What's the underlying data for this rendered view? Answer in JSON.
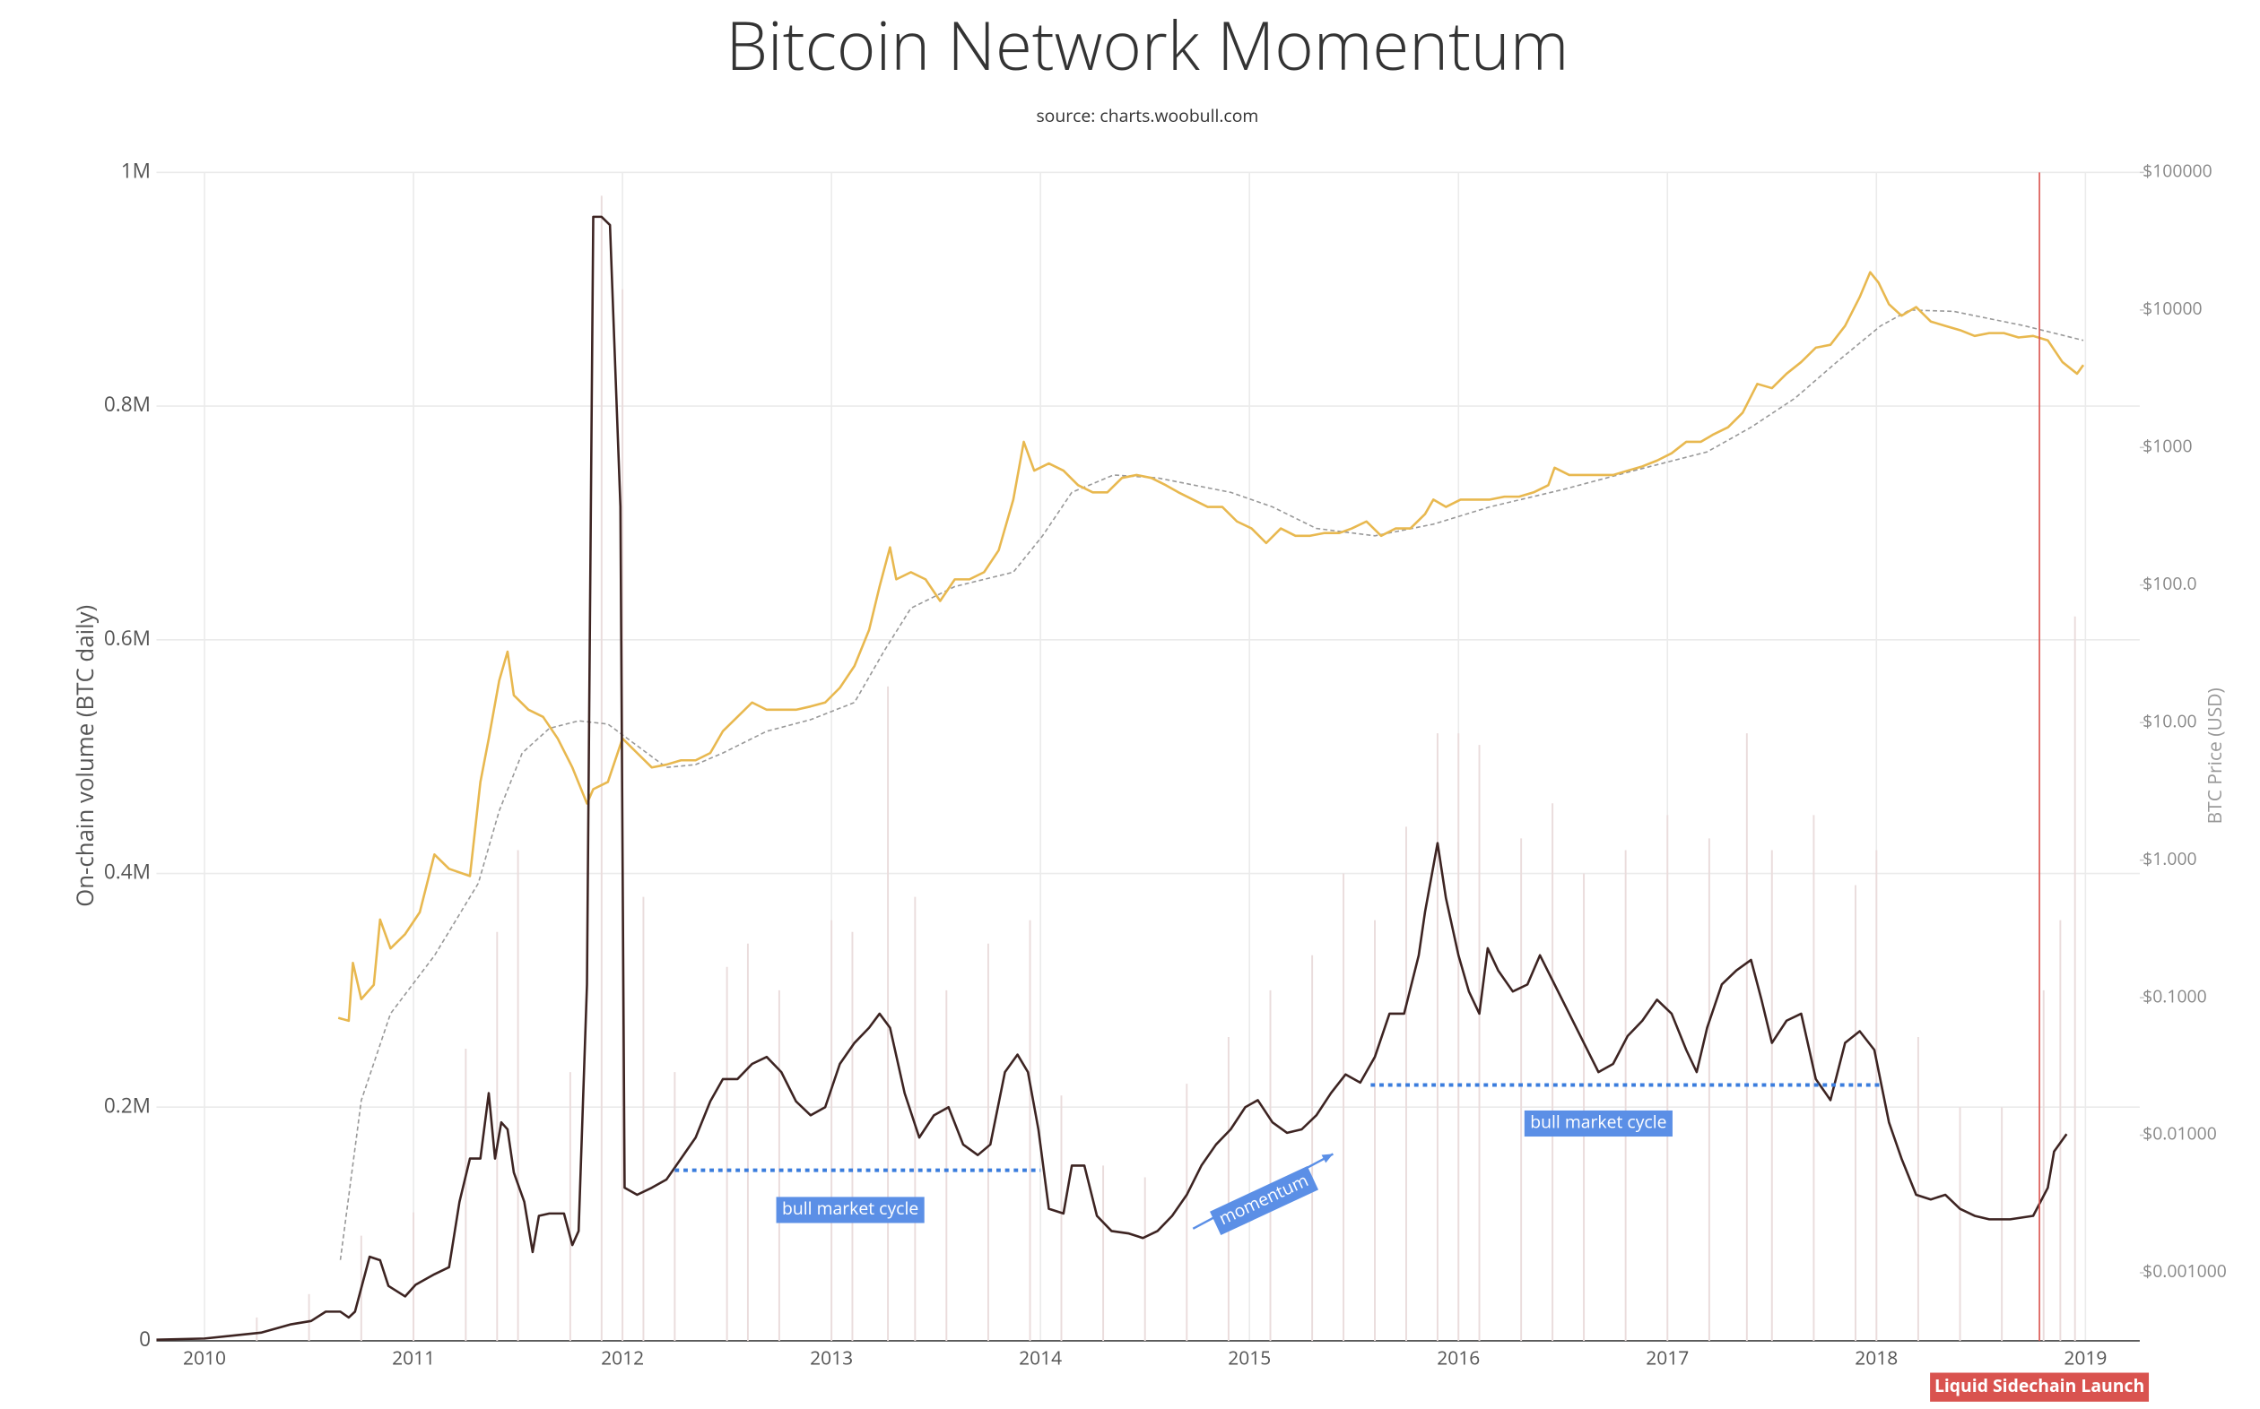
{
  "chart_data": {
    "type": "line",
    "title": "Bitcoin Network Momentum",
    "subtitle": "source: charts.woobull.com",
    "y_label": "On-chain volume (BTC daily)",
    "y2_label": "BTC Price (USD)",
    "xlim": [
      2009.77,
      2019.26
    ],
    "xticks": [
      2010,
      2011,
      2012,
      2013,
      2014,
      2015,
      2016,
      2017,
      2018,
      2019
    ],
    "ylim": [
      0,
      1000000
    ],
    "yticks": [
      0,
      {
        "value": 200000,
        "label": "0.2M"
      },
      {
        "value": 400000,
        "label": "0.4M"
      },
      {
        "value": 600000,
        "label": "0.6M"
      },
      {
        "value": 800000,
        "label": "0.8M"
      },
      {
        "value": 1000000,
        "label": "1M"
      }
    ],
    "y2lim": [
      0.00032,
      100000
    ],
    "y2_log": true,
    "y2ticks": [
      {
        "value": 0.001,
        "label": "$0.001000"
      },
      {
        "value": 0.01,
        "label": "$0.01000"
      },
      {
        "value": 0.1,
        "label": "$0.1000"
      },
      {
        "value": 1,
        "label": "$1.000"
      },
      {
        "value": 10,
        "label": "$10.00"
      },
      {
        "value": 100,
        "label": "$100.0"
      },
      {
        "value": 1000,
        "label": "$1000"
      },
      {
        "value": 10000,
        "label": "$10000"
      },
      {
        "value": 100000,
        "label": "$100000"
      }
    ],
    "grid": true,
    "series": [
      {
        "style": "bars",
        "color": "#eadcdc",
        "axis": "y",
        "x": [
          2010.25,
          2010.5,
          2010.75,
          2011.0,
          2011.25,
          2011.4,
          2011.5,
          2011.75,
          2011.9,
          2012.0,
          2012.1,
          2012.25,
          2012.5,
          2012.6,
          2012.75,
          2013.0,
          2013.1,
          2013.27,
          2013.4,
          2013.55,
          2013.75,
          2013.95,
          2014.1,
          2014.3,
          2014.5,
          2014.7,
          2014.9,
          2015.1,
          2015.3,
          2015.45,
          2015.6,
          2015.75,
          2015.9,
          2016.0,
          2016.1,
          2016.3,
          2016.45,
          2016.6,
          2016.8,
          2017.0,
          2017.2,
          2017.38,
          2017.5,
          2017.7,
          2017.9,
          2018.0,
          2018.2,
          2018.4,
          2018.6,
          2018.8,
          2018.88,
          2018.95
        ],
        "values": [
          20000,
          40000,
          90000,
          110000,
          250000,
          350000,
          420000,
          230000,
          980000,
          900000,
          380000,
          230000,
          320000,
          340000,
          300000,
          360000,
          350000,
          560000,
          380000,
          300000,
          340000,
          360000,
          210000,
          150000,
          140000,
          220000,
          260000,
          300000,
          330000,
          400000,
          360000,
          440000,
          520000,
          520000,
          510000,
          430000,
          460000,
          400000,
          420000,
          450000,
          430000,
          520000,
          420000,
          450000,
          390000,
          420000,
          260000,
          200000,
          200000,
          300000,
          360000,
          620000
        ]
      },
      {
        "style": "dashed",
        "color": "#999999",
        "axis": "y2",
        "x": [
          2010.65,
          2010.75,
          2010.89,
          2011.1,
          2011.31,
          2011.41,
          2011.52,
          2011.65,
          2011.79,
          2011.93,
          2012.07,
          2012.21,
          2012.35,
          2012.48,
          2012.69,
          2012.9,
          2013.11,
          2013.25,
          2013.38,
          2013.59,
          2013.87,
          2014.01,
          2014.15,
          2014.35,
          2014.56,
          2014.91,
          2015.11,
          2015.32,
          2015.6,
          2015.88,
          2016.15,
          2016.5,
          2016.84,
          2017.19,
          2017.4,
          2017.61,
          2017.81,
          2018.02,
          2018.16,
          2018.37,
          2018.71,
          2018.99
        ],
        "values": [
          0.00124,
          0.0179,
          0.0766,
          0.202,
          0.679,
          2.28,
          6.01,
          9.08,
          10.3,
          9.76,
          6.79,
          4.72,
          4.95,
          6.01,
          8.65,
          10.5,
          14.0,
          32.8,
          67.9,
          97.5,
          124,
          228,
          472,
          631,
          601,
          472,
          370,
          258,
          228,
          277,
          370,
          495,
          679,
          929,
          1403,
          2280,
          4180,
          7660,
          10000,
          9760,
          7660,
          6010
        ]
      },
      {
        "style": "solid",
        "color": "#e8b84f",
        "axis": "y2",
        "x": [
          2010.64,
          2010.69,
          2010.71,
          2010.75,
          2010.81,
          2010.84,
          2010.89,
          2010.96,
          2011.03,
          2011.1,
          2011.17,
          2011.27,
          2011.32,
          2011.36,
          2011.41,
          2011.45,
          2011.48,
          2011.55,
          2011.62,
          2011.69,
          2011.76,
          2011.83,
          2011.86,
          2011.93,
          2012.0,
          2012.07,
          2012.14,
          2012.21,
          2012.28,
          2012.35,
          2012.42,
          2012.48,
          2012.55,
          2012.62,
          2012.69,
          2012.76,
          2012.83,
          2012.9,
          2012.97,
          2013.04,
          2013.11,
          2013.18,
          2013.23,
          2013.28,
          2013.31,
          2013.38,
          2013.45,
          2013.52,
          2013.59,
          2013.66,
          2013.73,
          2013.8,
          2013.87,
          2013.92,
          2013.97,
          2014.04,
          2014.11,
          2014.18,
          2014.25,
          2014.32,
          2014.39,
          2014.46,
          2014.53,
          2014.6,
          2014.66,
          2014.73,
          2014.8,
          2014.87,
          2014.94,
          2015.01,
          2015.08,
          2015.15,
          2015.22,
          2015.29,
          2015.36,
          2015.43,
          2015.49,
          2015.56,
          2015.63,
          2015.7,
          2015.77,
          2015.84,
          2015.88,
          2015.94,
          2016.01,
          2016.08,
          2016.15,
          2016.22,
          2016.29,
          2016.36,
          2016.43,
          2016.46,
          2016.53,
          2016.6,
          2016.67,
          2016.74,
          2016.81,
          2016.88,
          2016.95,
          2017.02,
          2017.09,
          2017.16,
          2017.22,
          2017.29,
          2017.36,
          2017.43,
          2017.5,
          2017.57,
          2017.64,
          2017.71,
          2017.78,
          2017.85,
          2017.92,
          2017.97,
          2018.01,
          2018.06,
          2018.12,
          2018.19,
          2018.26,
          2018.33,
          2018.4,
          2018.47,
          2018.54,
          2018.61,
          2018.68,
          2018.75,
          2018.82,
          2018.89,
          2018.96,
          2018.99
        ],
        "values": [
          0.0713,
          0.0679,
          0.179,
          0.0976,
          0.124,
          0.37,
          0.228,
          0.29,
          0.418,
          1.1,
          0.865,
          0.766,
          3.7,
          7.66,
          20.2,
          32.8,
          15.8,
          12.4,
          11.0,
          7.66,
          4.72,
          2.58,
          3.28,
          3.7,
          7.66,
          6.01,
          4.72,
          4.95,
          5.32,
          5.32,
          6.01,
          8.65,
          11.0,
          14.0,
          12.4,
          12.4,
          12.4,
          13.1,
          14.0,
          17.9,
          25.8,
          47.2,
          97.5,
          188,
          110,
          124,
          110,
          76.6,
          110,
          110,
          124,
          179,
          418,
          1100,
          679,
          766,
          679,
          532,
          472,
          472,
          601,
          631,
          601,
          532,
          472,
          418,
          370,
          370,
          290,
          258,
          202,
          258,
          228,
          228,
          239,
          239,
          258,
          290,
          228,
          258,
          258,
          328,
          418,
          370,
          418,
          418,
          418,
          439,
          439,
          472,
          532,
          713,
          631,
          631,
          631,
          631,
          679,
          729,
          803,
          908,
          1100,
          1100,
          1245,
          1403,
          1790,
          2900,
          2700,
          3440,
          4180,
          5320,
          5580,
          7660,
          12400,
          18800,
          15800,
          11000,
          9080,
          10500,
          8240,
          7660,
          7130,
          6470,
          6790,
          6790,
          6310,
          6470,
          6010,
          4180,
          3440,
          3980
        ]
      },
      {
        "style": "solid",
        "color": "#3d2422",
        "axis": "y",
        "x": [
          2009.77,
          2010.0,
          2010.27,
          2010.41,
          2010.51,
          2010.58,
          2010.65,
          2010.69,
          2010.72,
          2010.79,
          2010.84,
          2010.88,
          2010.96,
          2011.01,
          2011.1,
          2011.17,
          2011.22,
          2011.27,
          2011.32,
          2011.36,
          2011.39,
          2011.42,
          2011.45,
          2011.48,
          2011.53,
          2011.57,
          2011.6,
          2011.65,
          2011.72,
          2011.76,
          2011.79,
          2011.83,
          2011.86,
          2011.9,
          2011.94,
          2011.99,
          2012.01,
          2012.07,
          2012.14,
          2012.21,
          2012.28,
          2012.35,
          2012.42,
          2012.48,
          2012.55,
          2012.62,
          2012.69,
          2012.76,
          2012.83,
          2012.9,
          2012.97,
          2013.04,
          2013.11,
          2013.18,
          2013.23,
          2013.28,
          2013.35,
          2013.42,
          2013.49,
          2013.56,
          2013.63,
          2013.7,
          2013.76,
          2013.83,
          2013.89,
          2013.94,
          2013.99,
          2014.04,
          2014.11,
          2014.15,
          2014.21,
          2014.27,
          2014.34,
          2014.42,
          2014.49,
          2014.56,
          2014.63,
          2014.7,
          2014.77,
          2014.84,
          2014.91,
          2014.98,
          2015.04,
          2015.11,
          2015.18,
          2015.25,
          2015.32,
          2015.39,
          2015.46,
          2015.53,
          2015.6,
          2015.67,
          2015.74,
          2015.81,
          2015.84,
          2015.9,
          2015.94,
          2016.0,
          2016.05,
          2016.1,
          2016.14,
          2016.19,
          2016.26,
          2016.33,
          2016.39,
          2016.46,
          2016.53,
          2016.6,
          2016.67,
          2016.74,
          2016.81,
          2016.88,
          2016.95,
          2017.02,
          2017.09,
          2017.14,
          2017.19,
          2017.26,
          2017.33,
          2017.4,
          2017.45,
          2017.5,
          2017.57,
          2017.64,
          2017.71,
          2017.78,
          2017.85,
          2017.92,
          2017.99,
          2018.06,
          2018.12,
          2018.19,
          2018.26,
          2018.33,
          2018.4,
          2018.47,
          2018.54,
          2018.64,
          2018.75,
          2018.82,
          2018.85,
          2018.91
        ],
        "values": [
          1000,
          2000,
          7000,
          14000,
          17000,
          25000,
          25000,
          20000,
          25000,
          72000,
          69000,
          47000,
          38000,
          48000,
          57000,
          63000,
          119000,
          156000,
          156000,
          212000,
          156000,
          187000,
          181000,
          144000,
          119000,
          76000,
          107000,
          109000,
          109000,
          82000,
          94000,
          305000,
          962000,
          962000,
          955000,
          714000,
          131000,
          125000,
          131000,
          138000,
          156000,
          174000,
          205000,
          224000,
          224000,
          237000,
          243000,
          230000,
          205000,
          193000,
          200000,
          237000,
          255000,
          268000,
          280000,
          268000,
          212000,
          174000,
          193000,
          200000,
          168000,
          159000,
          168000,
          230000,
          245000,
          230000,
          181000,
          113000,
          109000,
          150000,
          150000,
          107000,
          94000,
          92000,
          88000,
          94000,
          107000,
          125000,
          150000,
          168000,
          181000,
          200000,
          206000,
          187000,
          178000,
          181000,
          193000,
          212000,
          228000,
          221000,
          243000,
          280000,
          280000,
          330000,
          367000,
          426000,
          379000,
          330000,
          299000,
          280000,
          336000,
          317000,
          299000,
          305000,
          330000,
          305000,
          280000,
          255000,
          230000,
          237000,
          261000,
          274000,
          292000,
          280000,
          249000,
          230000,
          268000,
          305000,
          317000,
          326000,
          292000,
          255000,
          274000,
          280000,
          224000,
          206000,
          255000,
          265000,
          249000,
          187000,
          156000,
          125000,
          121000,
          125000,
          113000,
          107000,
          104000,
          104000,
          107000,
          131000,
          162000,
          177000
        ]
      }
    ],
    "market_cycles": [
      {
        "x0": 2012.25,
        "x1": 2014.0,
        "y": 146000
      },
      {
        "x0": 2015.58,
        "x1": 2018.02,
        "y": 219000
      }
    ],
    "arrow": {
      "x0": 2014.73,
      "y0": 96000,
      "x1": 2015.4,
      "y1": 160000
    },
    "annotations": [
      {
        "text": "bull market cycle",
        "x": 2013.09,
        "y": 112000,
        "angle": 0
      },
      {
        "text": "momentum",
        "x": 2015.07,
        "y": 120000,
        "angle": -25
      },
      {
        "text": "bull market cycle",
        "x": 2016.67,
        "y": 186000,
        "angle": 0
      }
    ],
    "events": [
      {
        "x": 2018.78,
        "label": "Liquid Sidechain Launch",
        "color": "#d9534f"
      }
    ]
  }
}
